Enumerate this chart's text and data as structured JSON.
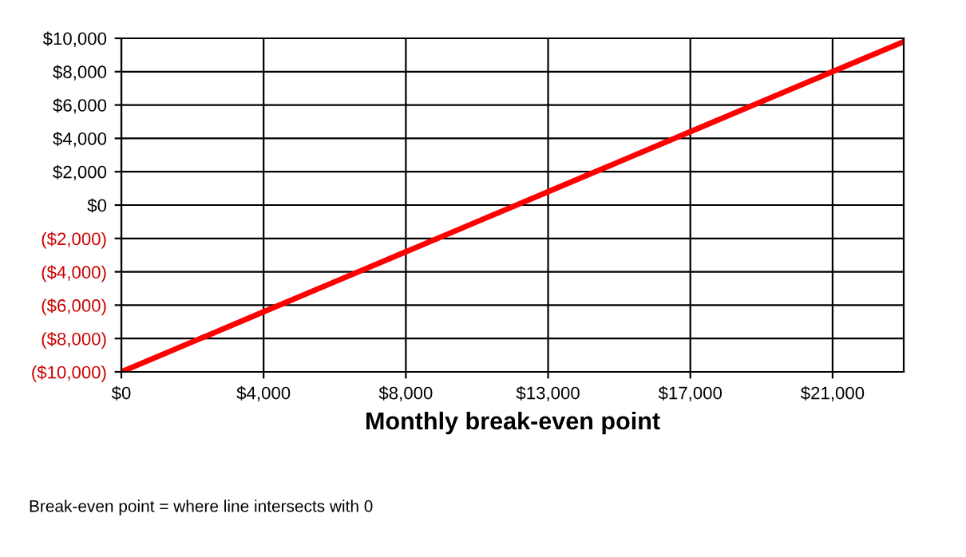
{
  "chart_data": {
    "type": "line",
    "xlabel": "Monthly break-even point",
    "categories": [
      "$0",
      null,
      "$4,000",
      null,
      "$8,000",
      null,
      "$13,000",
      null,
      "$17,000",
      null,
      "$21,000",
      null
    ],
    "series": [
      {
        "color": "#ff0000",
        "values": [
          -10000,
          -8200,
          -6400,
          -4600,
          -2800,
          -1000,
          800,
          2600,
          4400,
          6200,
          8000,
          9800
        ]
      }
    ],
    "ylim": [
      -10000,
      10000
    ],
    "yticks": [
      {
        "value": -10000,
        "label": "($10,000)"
      },
      {
        "value": -8000,
        "label": "($8,000)"
      },
      {
        "value": -6000,
        "label": "($6,000)"
      },
      {
        "value": -4000,
        "label": "($4,000)"
      },
      {
        "value": -2000,
        "label": "($2,000)"
      },
      {
        "value": 0,
        "label": "$0"
      },
      {
        "value": 2000,
        "label": "$2,000"
      },
      {
        "value": 4000,
        "label": "$4,000"
      },
      {
        "value": 6000,
        "label": "$6,000"
      },
      {
        "value": 8000,
        "label": "$8,000"
      },
      {
        "value": 10000,
        "label": "$10,000"
      }
    ],
    "grid": true,
    "marker": "none",
    "line_style": "solid",
    "annotations": [
      "Break-even point = where line intersects with 0"
    ]
  }
}
